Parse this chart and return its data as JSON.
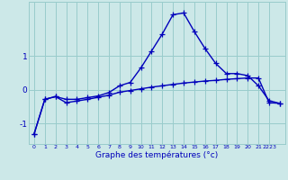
{
  "xlabel": "Graphe des températures (°c)",
  "bg_color": "#cce8e8",
  "line_color": "#0000bb",
  "grid_color": "#99cccc",
  "curve1_x": [
    0,
    1,
    2,
    3,
    4,
    5,
    6,
    7,
    8,
    9,
    10,
    11,
    12,
    13,
    14,
    15,
    16,
    17,
    18,
    19,
    20,
    21,
    22,
    23
  ],
  "curve1_y": [
    -1.3,
    -0.28,
    -0.2,
    -0.28,
    -0.28,
    -0.23,
    -0.18,
    -0.08,
    0.12,
    0.22,
    0.65,
    1.15,
    1.65,
    2.22,
    2.27,
    1.72,
    1.22,
    0.78,
    0.48,
    0.48,
    0.42,
    0.12,
    -0.32,
    -0.4
  ],
  "curve2_x": [
    0,
    1,
    2,
    3,
    4,
    5,
    6,
    7,
    8,
    9,
    10,
    11,
    12,
    13,
    14,
    15,
    16,
    17,
    18,
    19,
    20,
    21,
    22,
    23
  ],
  "curve2_y": [
    -1.3,
    -0.28,
    -0.2,
    -0.38,
    -0.33,
    -0.28,
    -0.22,
    -0.16,
    -0.07,
    -0.02,
    0.03,
    0.08,
    0.12,
    0.16,
    0.2,
    0.23,
    0.26,
    0.28,
    0.31,
    0.33,
    0.35,
    0.35,
    -0.38,
    -0.4
  ],
  "xlim": [
    -0.5,
    23.5
  ],
  "ylim": [
    -1.6,
    2.6
  ],
  "yticks": [
    -1,
    0,
    1
  ],
  "xtick_labels": [
    "0",
    "1",
    "2",
    "3",
    "4",
    "5",
    "6",
    "7",
    "8",
    "9",
    "10",
    "11",
    "12",
    "13",
    "14",
    "15",
    "16",
    "17",
    "18",
    "19",
    "20",
    "21",
    "2223"
  ],
  "xtick_pos": [
    0,
    1,
    2,
    3,
    4,
    5,
    6,
    7,
    8,
    9,
    10,
    11,
    12,
    13,
    14,
    15,
    16,
    17,
    18,
    19,
    20,
    21,
    22
  ],
  "marker": "+",
  "markersize": 4,
  "linewidth": 1.0
}
